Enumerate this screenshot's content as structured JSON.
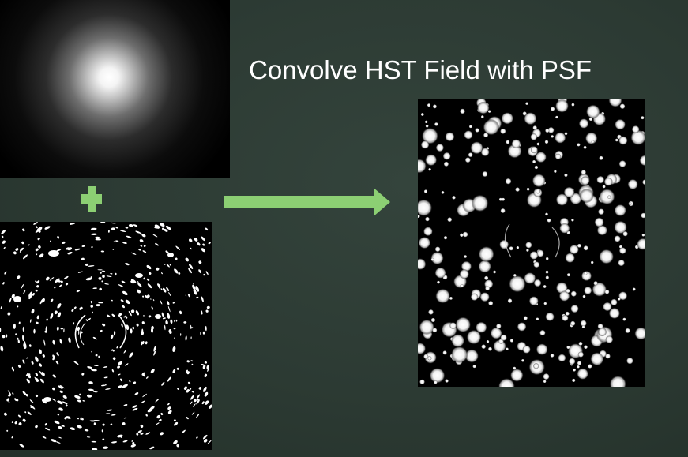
{
  "slide": {
    "title": "Convolve HST Field with PSF"
  },
  "colors": {
    "background": "#2c3a33",
    "accent": "#8ccf73",
    "title_text": "#ffffff",
    "panel_background": "#000000"
  },
  "images": {
    "psf": "psf-image",
    "hst_field": "hst-field-image",
    "convolved": "convolved-field-image"
  },
  "icons": {
    "plus": "plus-icon",
    "arrow": "arrow-right-icon"
  }
}
